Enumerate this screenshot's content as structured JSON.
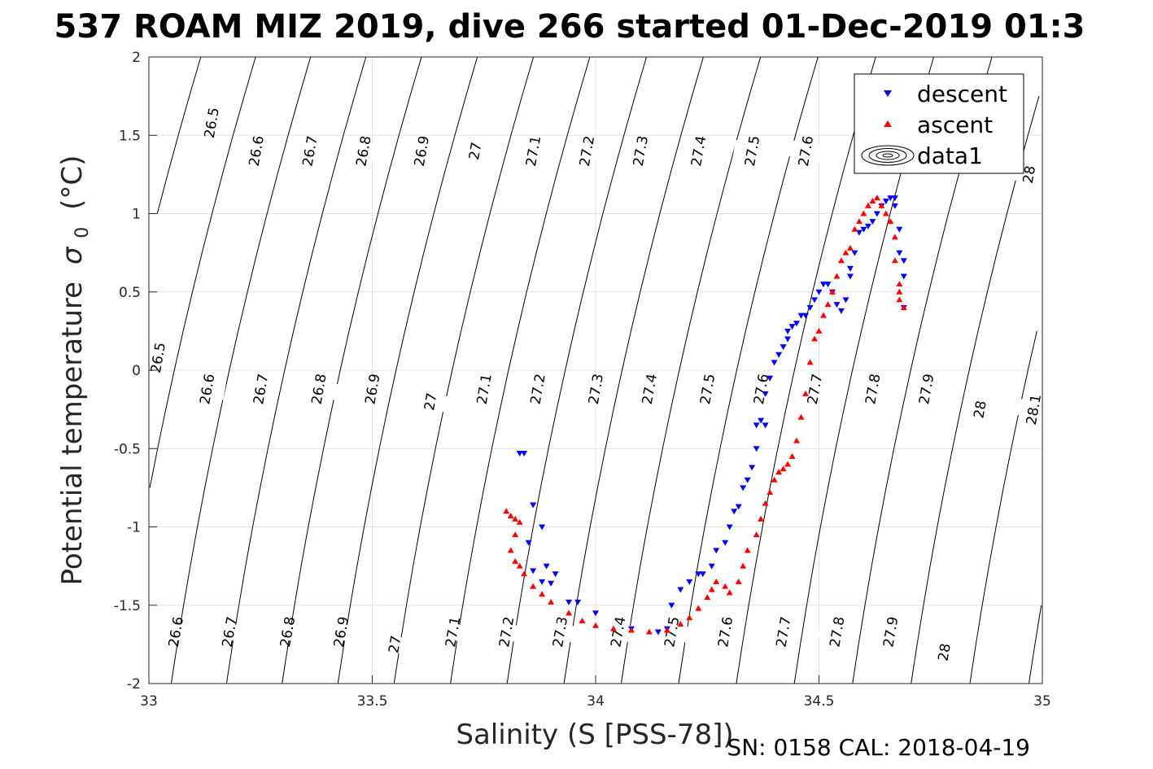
{
  "chart_data": {
    "type": "scatter",
    "title": "537 ROAM MIZ 2019, dive 266 started 01-Dec-2019 01:3",
    "xlabel": "Salinity (S [PSS-78])",
    "ylabel_main": "Potential temperature",
    "ylabel_symbol": "σ",
    "ylabel_subscript": "0",
    "ylabel_unit": "(°C)",
    "xlim": [
      33,
      35
    ],
    "ylim": [
      -2,
      2
    ],
    "x_ticks": [
      "33",
      "33.5",
      "34",
      "34.5",
      "35"
    ],
    "y_ticks": [
      "-2",
      "-1.5",
      "-1",
      "-0.5",
      "0",
      "0.5",
      "1",
      "1.5",
      "2"
    ],
    "grid": true,
    "legend_position": "top-right",
    "density_contours": {
      "labels_top": [
        {
          "label": "26.5",
          "x": 33.14,
          "y": 1.58
        },
        {
          "label": "26.6",
          "x": 33.24,
          "y": 1.4
        },
        {
          "label": "26.7",
          "x": 33.36,
          "y": 1.4
        },
        {
          "label": "26.8",
          "x": 33.48,
          "y": 1.4
        },
        {
          "label": "26.9",
          "x": 33.61,
          "y": 1.4
        },
        {
          "label": "27",
          "x": 33.73,
          "y": 1.4
        },
        {
          "label": "27.1",
          "x": 33.86,
          "y": 1.4
        },
        {
          "label": "27.2",
          "x": 33.98,
          "y": 1.4
        },
        {
          "label": "27.3",
          "x": 34.1,
          "y": 1.4
        },
        {
          "label": "27.4",
          "x": 34.23,
          "y": 1.4
        },
        {
          "label": "27.5",
          "x": 34.35,
          "y": 1.4
        },
        {
          "label": "27.6",
          "x": 34.47,
          "y": 1.4
        },
        {
          "label": "28",
          "x": 34.97,
          "y": 1.25
        }
      ],
      "labels_mid": [
        {
          "label": "26.5",
          "x": 33.02,
          "y": 0.08
        },
        {
          "label": "26.6",
          "x": 33.13,
          "y": -0.12
        },
        {
          "label": "26.7",
          "x": 33.25,
          "y": -0.12
        },
        {
          "label": "26.8",
          "x": 33.38,
          "y": -0.12
        },
        {
          "label": "26.9",
          "x": 33.5,
          "y": -0.12
        },
        {
          "label": "27",
          "x": 33.63,
          "y": -0.2
        },
        {
          "label": "27.1",
          "x": 33.75,
          "y": -0.12
        },
        {
          "label": "27.2",
          "x": 33.87,
          "y": -0.12
        },
        {
          "label": "27.3",
          "x": 34.0,
          "y": -0.12
        },
        {
          "label": "27.4",
          "x": 34.12,
          "y": -0.12
        },
        {
          "label": "27.5",
          "x": 34.25,
          "y": -0.12
        },
        {
          "label": "27.6",
          "x": 34.37,
          "y": -0.12
        },
        {
          "label": "27.7",
          "x": 34.49,
          "y": -0.12
        },
        {
          "label": "27.8",
          "x": 34.62,
          "y": -0.12
        },
        {
          "label": "27.9",
          "x": 34.74,
          "y": -0.12
        },
        {
          "label": "28",
          "x": 34.86,
          "y": -0.25
        },
        {
          "label": "28.1",
          "x": 34.98,
          "y": -0.25
        }
      ],
      "labels_bottom": [
        {
          "label": "26.6",
          "x": 33.06,
          "y": -1.67
        },
        {
          "label": "26.7",
          "x": 33.18,
          "y": -1.67
        },
        {
          "label": "26.8",
          "x": 33.31,
          "y": -1.67
        },
        {
          "label": "26.9",
          "x": 33.43,
          "y": -1.67
        },
        {
          "label": "27",
          "x": 33.55,
          "y": -1.75
        },
        {
          "label": "27.1",
          "x": 33.68,
          "y": -1.67
        },
        {
          "label": "27.2",
          "x": 33.8,
          "y": -1.67
        },
        {
          "label": "27.3",
          "x": 33.92,
          "y": -1.67
        },
        {
          "label": "27.4",
          "x": 34.05,
          "y": -1.67
        },
        {
          "label": "27.5",
          "x": 34.17,
          "y": -1.67
        },
        {
          "label": "27.6",
          "x": 34.29,
          "y": -1.67
        },
        {
          "label": "27.7",
          "x": 34.42,
          "y": -1.67
        },
        {
          "label": "27.8",
          "x": 34.54,
          "y": -1.67
        },
        {
          "label": "27.9",
          "x": 34.66,
          "y": -1.67
        },
        {
          "label": "28",
          "x": 34.78,
          "y": -1.8
        }
      ]
    },
    "series": [
      {
        "name": "descent",
        "color": "#0000ff",
        "marker": "triangle-down",
        "x": [
          33.83,
          33.84,
          33.86,
          33.85,
          33.88,
          33.86,
          33.9,
          33.88,
          33.89,
          33.91,
          33.94,
          33.96,
          34.0,
          34.08,
          34.14,
          34.16,
          34.17,
          34.19,
          34.21,
          34.23,
          34.24,
          34.26,
          34.27,
          34.29,
          34.3,
          34.31,
          34.32,
          34.33,
          34.34,
          34.35,
          34.36,
          34.36,
          34.37,
          34.38,
          34.38,
          34.39,
          34.4,
          34.41,
          34.42,
          34.43,
          34.43,
          34.44,
          34.45,
          34.46,
          34.47,
          34.48,
          34.49,
          34.5,
          34.51,
          34.52,
          34.53,
          34.54,
          34.55,
          34.56,
          34.57,
          34.57,
          34.58,
          34.59,
          34.6,
          34.61,
          34.62,
          34.63,
          34.64,
          34.65,
          34.66,
          34.67,
          34.67,
          34.68,
          34.68,
          34.69,
          34.69,
          34.69
        ],
        "y": [
          -0.53,
          -0.53,
          -0.86,
          -1.1,
          -1.0,
          -1.28,
          -1.36,
          -1.35,
          -1.25,
          -1.3,
          -1.48,
          -1.48,
          -1.55,
          -1.65,
          -1.67,
          -1.65,
          -1.5,
          -1.4,
          -1.35,
          -1.3,
          -1.3,
          -1.25,
          -1.15,
          -1.1,
          -1.0,
          -0.9,
          -0.87,
          -0.75,
          -0.7,
          -0.62,
          -0.5,
          -0.35,
          -0.32,
          -0.35,
          -0.15,
          -0.05,
          0.05,
          0.1,
          0.15,
          0.2,
          0.25,
          0.28,
          0.3,
          0.35,
          0.35,
          0.4,
          0.45,
          0.5,
          0.55,
          0.55,
          0.5,
          0.42,
          0.38,
          0.45,
          0.6,
          0.65,
          0.75,
          0.88,
          0.9,
          0.92,
          0.95,
          1.0,
          1.05,
          1.08,
          1.1,
          1.1,
          1.05,
          0.9,
          0.75,
          0.7,
          0.6,
          0.4
        ]
      },
      {
        "name": "ascent",
        "color": "#ff0000",
        "marker": "triangle-up",
        "x": [
          33.8,
          33.81,
          33.82,
          33.83,
          33.82,
          33.81,
          33.82,
          33.83,
          33.84,
          33.86,
          33.88,
          33.9,
          33.94,
          33.97,
          34.0,
          34.04,
          34.08,
          34.12,
          34.16,
          34.19,
          34.21,
          34.23,
          34.25,
          34.26,
          34.27,
          34.29,
          34.3,
          34.32,
          34.33,
          34.34,
          34.36,
          34.37,
          34.38,
          34.39,
          34.4,
          34.41,
          34.42,
          34.43,
          34.44,
          34.45,
          34.46,
          34.47,
          34.48,
          34.49,
          34.5,
          34.51,
          34.52,
          34.53,
          34.54,
          34.55,
          34.56,
          34.57,
          34.58,
          34.59,
          34.6,
          34.61,
          34.62,
          34.63,
          34.64,
          34.65,
          34.66,
          34.67,
          34.67,
          34.68,
          34.68,
          34.68,
          34.69
        ],
        "y": [
          -0.9,
          -0.93,
          -0.95,
          -0.97,
          -1.05,
          -1.15,
          -1.22,
          -1.25,
          -1.3,
          -1.38,
          -1.43,
          -1.48,
          -1.55,
          -1.6,
          -1.63,
          -1.65,
          -1.66,
          -1.67,
          -1.66,
          -1.62,
          -1.58,
          -1.52,
          -1.45,
          -1.4,
          -1.35,
          -1.38,
          -1.42,
          -1.35,
          -1.25,
          -1.15,
          -1.05,
          -0.95,
          -0.85,
          -0.78,
          -0.7,
          -0.65,
          -0.63,
          -0.6,
          -0.55,
          -0.45,
          -0.3,
          -0.15,
          0.05,
          0.2,
          0.25,
          0.35,
          0.42,
          0.5,
          0.6,
          0.7,
          0.75,
          0.78,
          0.9,
          0.95,
          1.0,
          1.05,
          1.08,
          1.1,
          1.05,
          1.0,
          0.95,
          0.85,
          0.7,
          0.55,
          0.5,
          0.45,
          0.4
        ]
      }
    ],
    "legend_entries": [
      "descent",
      "ascent",
      "data1"
    ],
    "footer": "SN: 0158  CAL: 2018-04-19"
  }
}
